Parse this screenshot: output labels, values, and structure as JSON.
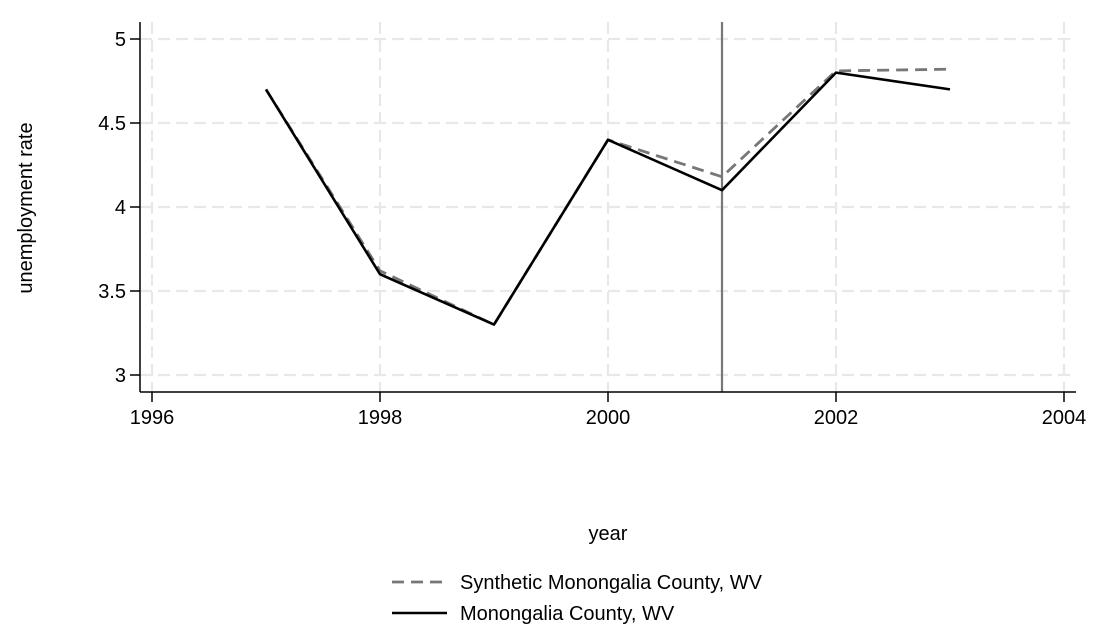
{
  "chart_data": {
    "type": "line",
    "title": "",
    "xlabel": "year",
    "ylabel": "unemployment rate",
    "xlim": [
      1996,
      2004
    ],
    "ylim": [
      3,
      5
    ],
    "x_ticks": [
      1996,
      1998,
      2000,
      2002,
      2004
    ],
    "x_tick_labels": [
      "1996",
      "1998",
      "2000",
      "2002",
      "2004"
    ],
    "y_ticks": [
      3,
      3.5,
      4,
      4.5,
      5
    ],
    "y_tick_labels": [
      "3",
      "3.5",
      "4",
      "4.5",
      "5"
    ],
    "grid": true,
    "legend_position": "bottom",
    "reference_line": {
      "axis": "x",
      "value": 2001,
      "color": "#777777"
    },
    "series": [
      {
        "name": "Synthetic Monongalia County, WV",
        "style": "dashed",
        "color": "#777777",
        "x": [
          1997,
          1998,
          1999,
          2000,
          2001,
          2002,
          2003
        ],
        "y": [
          4.7,
          3.62,
          3.3,
          4.4,
          4.18,
          4.81,
          4.82
        ]
      },
      {
        "name": "Monongalia County, WV",
        "style": "solid",
        "color": "#000000",
        "x": [
          1997,
          1998,
          1999,
          2000,
          2001,
          2002,
          2003
        ],
        "y": [
          4.7,
          3.6,
          3.3,
          4.4,
          4.1,
          4.8,
          4.7
        ]
      }
    ]
  }
}
